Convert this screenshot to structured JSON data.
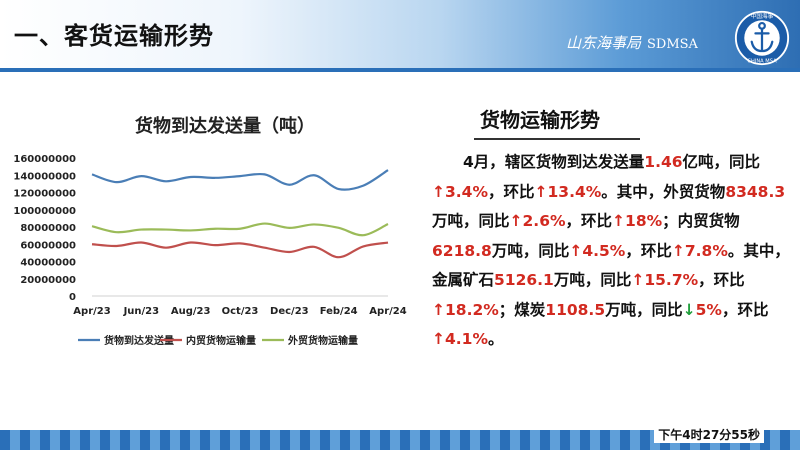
{
  "header": {
    "title": "一、客货运输形势",
    "brand_text": "山东海事局",
    "brand_code": "SDMSA",
    "logo_top_text": "中国海事",
    "logo_bottom_text": "CHINA MSA"
  },
  "right": {
    "title": "货物运输形势",
    "p": [
      {
        "t": "　　4月，辖区货物到达发送量",
        "c": "txt"
      },
      {
        "t": "1.46",
        "c": "num"
      },
      {
        "t": "亿吨，同比",
        "c": "txt"
      },
      {
        "t": "↑",
        "c": "up"
      },
      {
        "t": "3.4%",
        "c": "num"
      },
      {
        "t": "，环比",
        "c": "txt"
      },
      {
        "t": "↑",
        "c": "up"
      },
      {
        "t": "13.4%",
        "c": "num"
      },
      {
        "t": "。其中，外贸货物",
        "c": "txt"
      },
      {
        "t": "8348.3",
        "c": "num"
      },
      {
        "t": "万吨，同比",
        "c": "txt"
      },
      {
        "t": "↑",
        "c": "up"
      },
      {
        "t": "2.6%",
        "c": "num"
      },
      {
        "t": "，环比",
        "c": "txt"
      },
      {
        "t": "↑",
        "c": "up"
      },
      {
        "t": "18%",
        "c": "num"
      },
      {
        "t": "；内贸货物",
        "c": "txt"
      },
      {
        "t": "6218.8",
        "c": "num"
      },
      {
        "t": "万吨，同比",
        "c": "txt"
      },
      {
        "t": "↑",
        "c": "up"
      },
      {
        "t": "4.5%",
        "c": "num"
      },
      {
        "t": "，环比",
        "c": "txt"
      },
      {
        "t": "↑",
        "c": "up"
      },
      {
        "t": "7.8%",
        "c": "num"
      },
      {
        "t": "。其中，金属矿石",
        "c": "txt"
      },
      {
        "t": "5126.1",
        "c": "num"
      },
      {
        "t": "万吨，同比",
        "c": "txt"
      },
      {
        "t": "↑",
        "c": "up"
      },
      {
        "t": "15.7%",
        "c": "num"
      },
      {
        "t": "，环比",
        "c": "txt"
      },
      {
        "t": "↑",
        "c": "up"
      },
      {
        "t": "18.2%",
        "c": "num"
      },
      {
        "t": "；煤炭",
        "c": "txt"
      },
      {
        "t": "1108.5",
        "c": "num"
      },
      {
        "t": "万吨，同比",
        "c": "txt"
      },
      {
        "t": "↓",
        "c": "down"
      },
      {
        "t": "5%",
        "c": "num"
      },
      {
        "t": "，环比",
        "c": "txt"
      },
      {
        "t": "↑",
        "c": "up"
      },
      {
        "t": "4.1%",
        "c": "num"
      },
      {
        "t": "。",
        "c": "txt"
      }
    ]
  },
  "footer": {
    "clock": "下午4时27分55秒"
  },
  "colors": {
    "total": "#4a7eb6",
    "domestic": "#c0504d",
    "foreign": "#9bbb59",
    "up": "#d22a20",
    "down": "#1e9e3a"
  },
  "chart_data": {
    "type": "line",
    "title": "货物到达发送量（吨）",
    "x": [
      "Apr/23",
      "May/23",
      "Jun/23",
      "Jul/23",
      "Aug/23",
      "Sep/23",
      "Oct/23",
      "Nov/23",
      "Dec/23",
      "Jan/24",
      "Feb/24",
      "Mar/24",
      "Apr/24"
    ],
    "xticks": [
      "Apr/23",
      "Jun/23",
      "Aug/23",
      "Oct/23",
      "Dec/23",
      "Feb/24",
      "Apr/24"
    ],
    "ylim": [
      0,
      160000000
    ],
    "yticks": [
      0,
      20000000,
      40000000,
      60000000,
      80000000,
      100000000,
      120000000,
      140000000,
      160000000
    ],
    "grid": false,
    "legend_position": "bottom",
    "series": [
      {
        "name": "货物到达发送量",
        "values": [
          141000000,
          132000000,
          139000000,
          133000000,
          138000000,
          137000000,
          139000000,
          141000000,
          129000000,
          140000000,
          124000000,
          128000000,
          146000000
        ]
      },
      {
        "name": "内贸货物运输量",
        "values": [
          60000000,
          58000000,
          62000000,
          56000000,
          62000000,
          59000000,
          61000000,
          56000000,
          51000000,
          57000000,
          45000000,
          57500000,
          62000000
        ]
      },
      {
        "name": "外贸货物运输量",
        "values": [
          81000000,
          74000000,
          77000000,
          77000000,
          76000000,
          78000000,
          78000000,
          84000000,
          79000000,
          83000000,
          79000000,
          70500000,
          83500000
        ]
      }
    ]
  }
}
